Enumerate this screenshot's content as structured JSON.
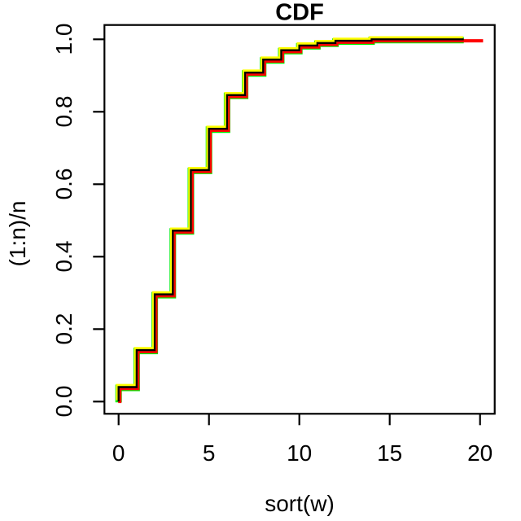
{
  "chart_data": {
    "type": "line",
    "subtype": "step-ecdf",
    "title": "CDF",
    "xlabel": "sort(w)",
    "ylabel": "(1:n)/n",
    "x_ticks": [
      "0",
      "5",
      "10",
      "15",
      "20"
    ],
    "y_ticks": [
      "0.0",
      "0.2",
      "0.4",
      "0.6",
      "0.8",
      "1.0"
    ],
    "xlim": [
      0,
      20
    ],
    "ylim": [
      0,
      1
    ],
    "grid": false,
    "legend": "none",
    "steps": [
      [
        0,
        0.04
      ],
      [
        1,
        0.142
      ],
      [
        2,
        0.296
      ],
      [
        3,
        0.472
      ],
      [
        4,
        0.639
      ],
      [
        5,
        0.753
      ],
      [
        6,
        0.846
      ],
      [
        7,
        0.908
      ],
      [
        8,
        0.944
      ],
      [
        9,
        0.97
      ],
      [
        10,
        0.983
      ],
      [
        11,
        0.99
      ],
      [
        12,
        0.996
      ],
      [
        14,
        1.0
      ]
    ],
    "curve_start_y": 0.0,
    "curve_end_x": 19.1,
    "series": [
      {
        "name": "green-cdf",
        "color": "#00EE00",
        "lwd": 8,
        "dx": 0,
        "dy": 1
      },
      {
        "name": "red-cdf",
        "color": "#FF0000",
        "lwd": 4,
        "dx": 1.5,
        "dy": 1.8,
        "end_x": 20.1
      },
      {
        "name": "yellow-cdf",
        "color": "#FFFF00",
        "lwd": 4.5,
        "dx": -1,
        "dy": -1.6
      },
      {
        "name": "black-cdf",
        "color": "#000000",
        "lwd": 2.4,
        "dx": 0,
        "dy": 0
      }
    ]
  }
}
